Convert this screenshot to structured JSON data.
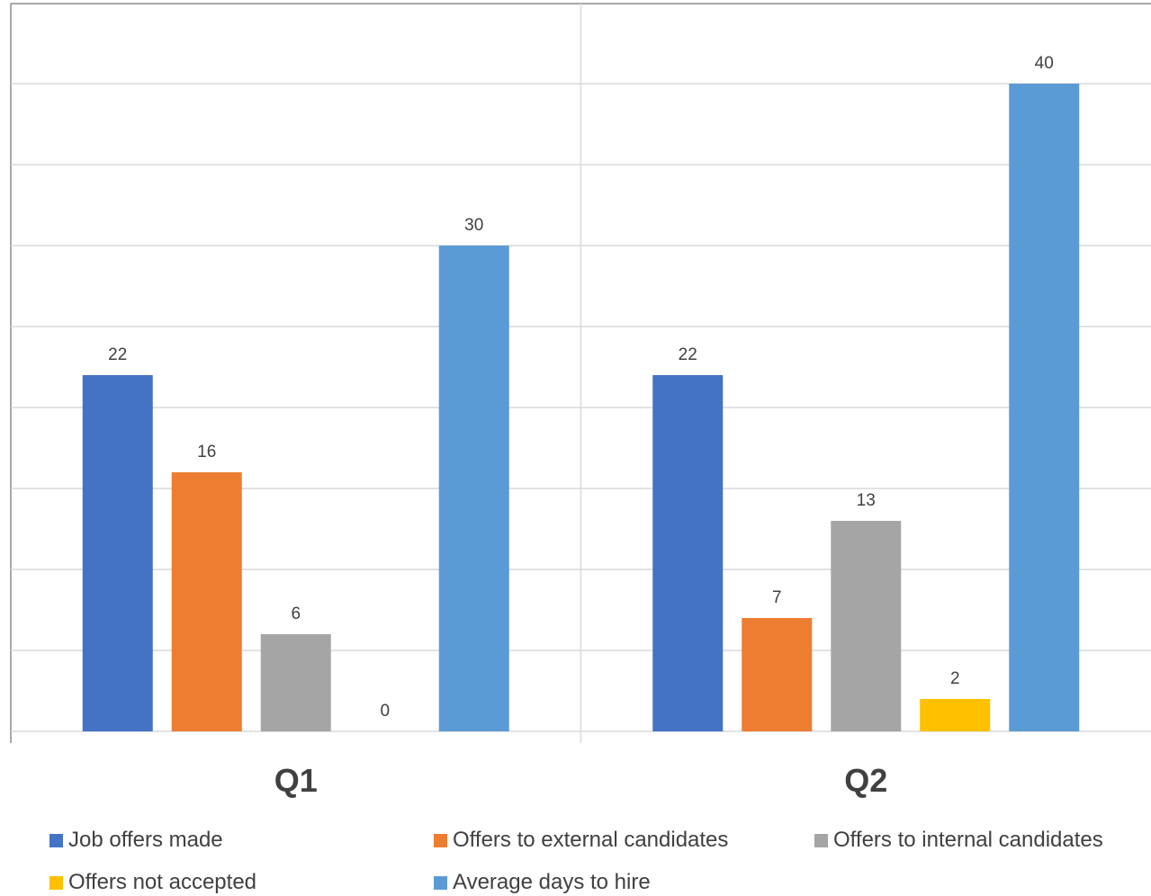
{
  "chart_data": {
    "type": "bar",
    "categories": [
      "Q1",
      "Q2"
    ],
    "ylim": [
      0,
      40
    ],
    "grid": true,
    "legend_position": "bottom",
    "series": [
      {
        "name": "Job offers made",
        "color": "#4472C4",
        "values": [
          22,
          22
        ]
      },
      {
        "name": "Offers to external candidates",
        "color": "#ED7D31",
        "values": [
          16,
          7
        ]
      },
      {
        "name": "Offers to internal candidates",
        "color": "#A5A5A5",
        "values": [
          6,
          13
        ]
      },
      {
        "name": "Offers not accepted",
        "color": "#FFC000",
        "values": [
          0,
          2
        ]
      },
      {
        "name": "Average days to hire",
        "color": "#5B9BD5",
        "values": [
          30,
          40
        ]
      }
    ]
  }
}
